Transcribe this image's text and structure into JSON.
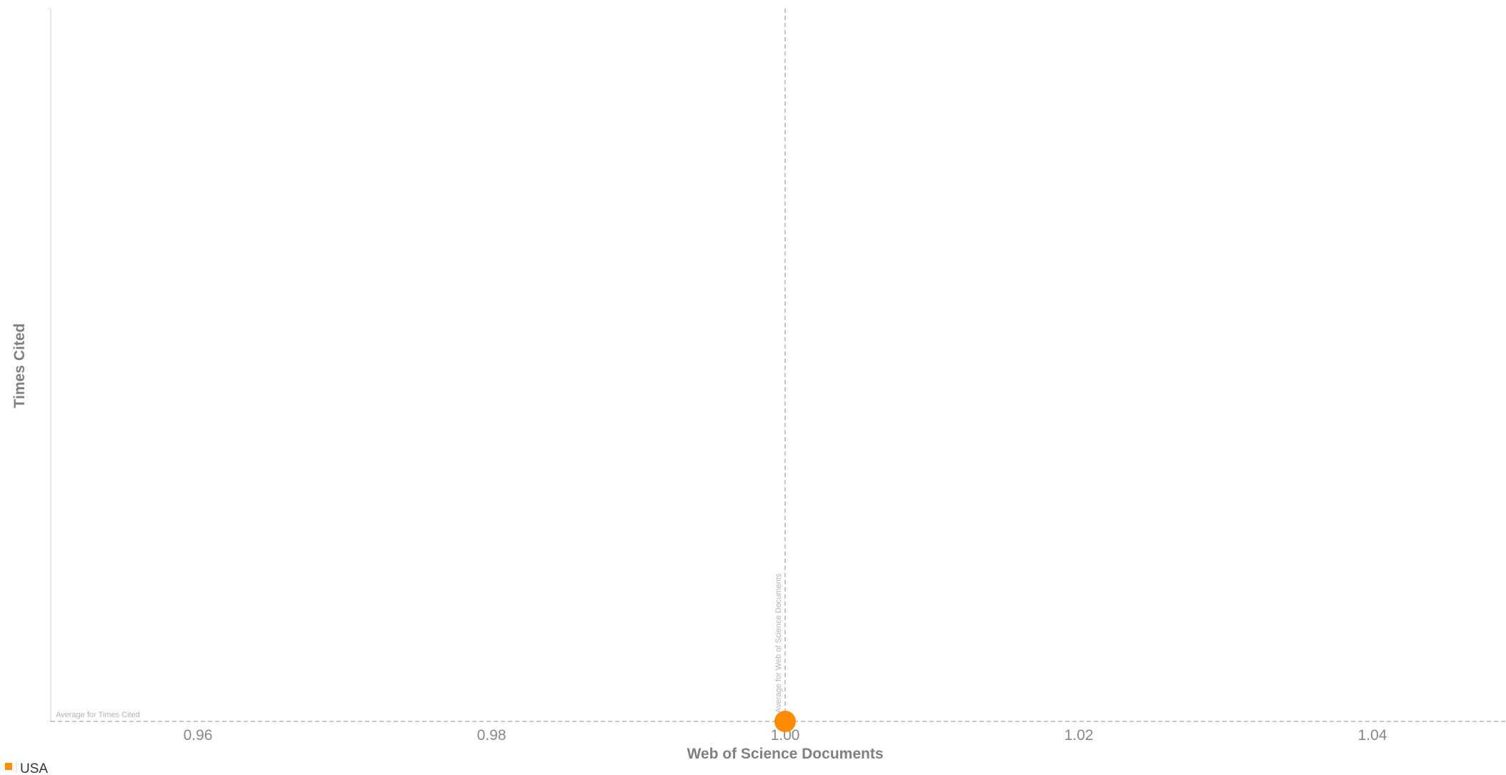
{
  "chart_data": {
    "type": "scatter",
    "xlabel": "Web of Science Documents",
    "ylabel": "Times Cited",
    "xlim": [
      0.95,
      1.05
    ],
    "x_ticks": [
      "0.96",
      "0.98",
      "1.00",
      "1.02",
      "1.04"
    ],
    "x_tick_values": [
      0.96,
      0.98,
      1.0,
      1.02,
      1.04
    ],
    "ylim": [
      0,
      1
    ],
    "grid": false,
    "legend_position": "bottom-left",
    "reference_lines": [
      {
        "axis": "x",
        "value": 1.0,
        "label": "Average for Web of Science Documents"
      },
      {
        "axis": "y",
        "value": 0,
        "label": "Average for Times Cited"
      }
    ],
    "series": [
      {
        "name": "USA",
        "color": "#ff8c00",
        "points": [
          {
            "x": 1.0,
            "y": 0
          }
        ]
      }
    ]
  }
}
